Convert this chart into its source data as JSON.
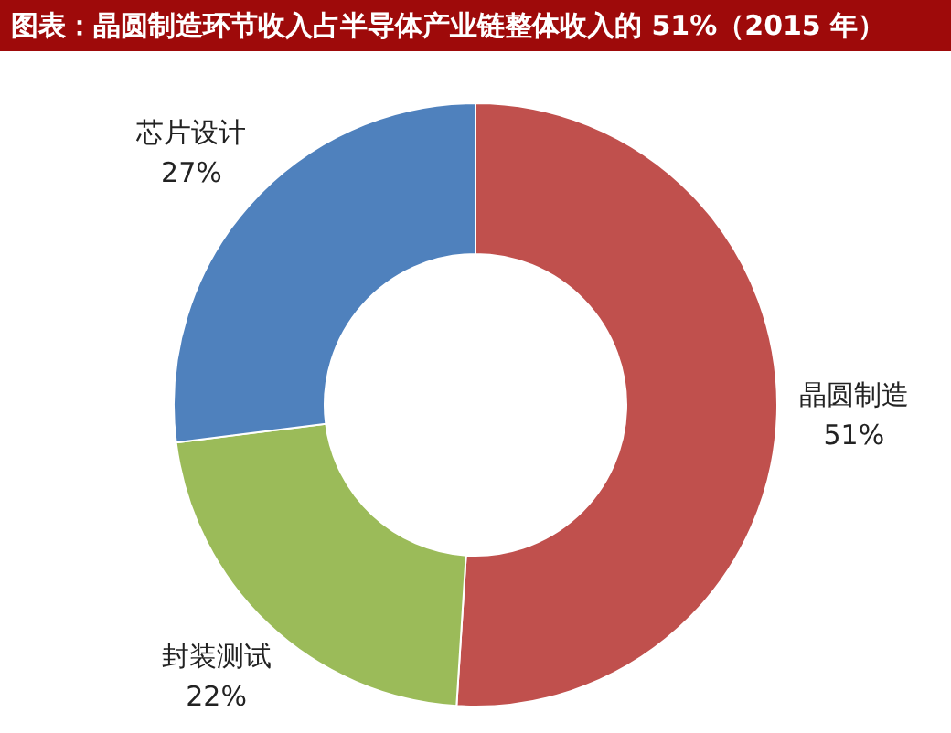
{
  "chart_data": {
    "type": "donut",
    "title": "图表：晶圆制造环节收入占半导体产业链整体收入的 51%（2015 年）",
    "categories": [
      "晶圆制造",
      "封装测试",
      "芯片设计"
    ],
    "values": [
      51,
      22,
      27
    ],
    "colors": [
      "#c0504d",
      "#9bbb59",
      "#4f81bd"
    ],
    "value_labels": [
      "51%",
      "22%",
      "27%"
    ],
    "legend": false
  }
}
